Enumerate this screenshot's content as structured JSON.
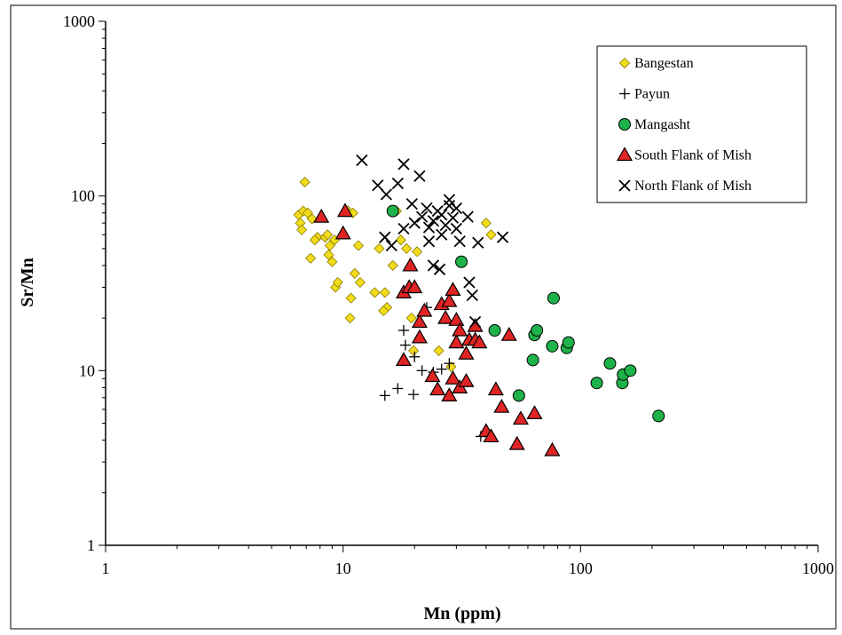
{
  "chart_data": {
    "type": "scatter",
    "title": "",
    "xlabel": "Mn (ppm)",
    "ylabel": "Sr/Mn",
    "xscale": "log",
    "yscale": "log",
    "xlim": [
      1,
      1000
    ],
    "ylim": [
      1,
      1000
    ],
    "xticks": [
      1,
      10,
      100,
      1000
    ],
    "yticks": [
      1,
      10,
      100,
      1000
    ],
    "xtick_labels": [
      "1",
      "10",
      "100",
      "1000"
    ],
    "ytick_labels": [
      "1",
      "10",
      "100",
      "1000"
    ],
    "grid": false,
    "legend_position": "top-right",
    "series": [
      {
        "name": "Bangestan",
        "marker": "diamond",
        "color": "#f2dc1c",
        "points": [
          [
            6.9,
            120
          ],
          [
            6.5,
            78
          ],
          [
            6.8,
            82
          ],
          [
            7.1,
            80
          ],
          [
            6.6,
            70
          ],
          [
            6.7,
            64
          ],
          [
            7.4,
            74
          ],
          [
            7.8,
            58
          ],
          [
            7.6,
            56
          ],
          [
            7.3,
            44
          ],
          [
            8.4,
            58
          ],
          [
            8.6,
            60
          ],
          [
            8.8,
            52
          ],
          [
            8.7,
            46
          ],
          [
            9.0,
            42
          ],
          [
            9.2,
            56
          ],
          [
            9.3,
            30
          ],
          [
            9.5,
            32
          ],
          [
            10.5,
            82
          ],
          [
            11.0,
            80
          ],
          [
            10.8,
            26
          ],
          [
            11.6,
            52
          ],
          [
            11.2,
            36
          ],
          [
            10.7,
            20
          ],
          [
            11.8,
            32
          ],
          [
            13.6,
            28
          ],
          [
            14.2,
            50
          ],
          [
            15.0,
            28
          ],
          [
            15.3,
            23
          ],
          [
            14.8,
            22
          ],
          [
            16.2,
            40
          ],
          [
            16.8,
            82
          ],
          [
            17.5,
            56
          ],
          [
            18.5,
            50
          ],
          [
            20.5,
            48
          ],
          [
            19.4,
            20
          ],
          [
            19.8,
            13
          ],
          [
            25.3,
            13
          ],
          [
            28.5,
            10.5
          ],
          [
            40.0,
            70
          ],
          [
            42.0,
            60
          ]
        ]
      },
      {
        "name": "Payun",
        "marker": "plus",
        "color": "#000000",
        "points": [
          [
            15.0,
            7.2
          ],
          [
            17.0,
            7.9
          ],
          [
            19.8,
            7.3
          ],
          [
            18.0,
            17
          ],
          [
            18.3,
            14
          ],
          [
            20.0,
            12
          ],
          [
            21.5,
            10
          ],
          [
            22.5,
            23
          ],
          [
            24.0,
            9.8
          ],
          [
            26.0,
            10.2
          ],
          [
            28.0,
            11
          ],
          [
            38.0,
            4.2
          ]
        ]
      },
      {
        "name": "Mangasht",
        "marker": "circle",
        "color": "#1eb24a",
        "points": [
          [
            16.2,
            82
          ],
          [
            31.5,
            42
          ],
          [
            43.5,
            17
          ],
          [
            55.0,
            7.2
          ],
          [
            63.0,
            11.5
          ],
          [
            64.0,
            16
          ],
          [
            65.5,
            17
          ],
          [
            76.0,
            13.8
          ],
          [
            77.0,
            26
          ],
          [
            87.5,
            13.5
          ],
          [
            89.0,
            14.5
          ],
          [
            117.0,
            8.5
          ],
          [
            133.0,
            11
          ],
          [
            150.0,
            8.5
          ],
          [
            151.0,
            9.5
          ],
          [
            162.0,
            10
          ],
          [
            213.0,
            5.5
          ]
        ]
      },
      {
        "name": "South Flank of Mish",
        "marker": "triangle",
        "color": "#e02424",
        "points": [
          [
            8.1,
            76
          ],
          [
            10.2,
            82
          ],
          [
            10.0,
            61
          ],
          [
            18.0,
            28
          ],
          [
            18.0,
            11.5
          ],
          [
            19.0,
            30
          ],
          [
            19.2,
            40
          ],
          [
            20.0,
            30
          ],
          [
            21.0,
            15.5
          ],
          [
            21.0,
            19
          ],
          [
            22.0,
            22
          ],
          [
            23.8,
            9.3
          ],
          [
            25.0,
            7.8
          ],
          [
            26.0,
            24
          ],
          [
            27.0,
            20
          ],
          [
            28.0,
            25
          ],
          [
            28.0,
            7.2
          ],
          [
            29.0,
            29
          ],
          [
            29.0,
            9.0
          ],
          [
            30.0,
            14.5
          ],
          [
            30.0,
            19.5
          ],
          [
            31.0,
            17
          ],
          [
            31.0,
            8.0
          ],
          [
            33.0,
            8.7
          ],
          [
            33.0,
            12.5
          ],
          [
            34.0,
            15.0
          ],
          [
            36.0,
            15.0
          ],
          [
            36.0,
            18.0
          ],
          [
            37.5,
            14.5
          ],
          [
            40.0,
            4.5
          ],
          [
            42.0,
            4.2
          ],
          [
            44.0,
            7.8
          ],
          [
            46.5,
            6.2
          ],
          [
            50.0,
            16
          ],
          [
            54.0,
            3.8
          ],
          [
            56.0,
            5.3
          ],
          [
            64.0,
            5.7
          ],
          [
            76.0,
            3.5
          ]
        ]
      },
      {
        "name": "North Flank of Mish",
        "marker": "x",
        "color": "#000000",
        "points": [
          [
            12.0,
            160
          ],
          [
            14.0,
            115
          ],
          [
            15.2,
            102
          ],
          [
            17.0,
            118
          ],
          [
            18.0,
            152
          ],
          [
            19.5,
            90
          ],
          [
            21.0,
            130
          ],
          [
            22.5,
            85
          ],
          [
            21.5,
            76
          ],
          [
            23.0,
            66
          ],
          [
            24.0,
            72
          ],
          [
            25.0,
            82
          ],
          [
            26.0,
            78
          ],
          [
            27.0,
            68
          ],
          [
            28.0,
            95
          ],
          [
            29.0,
            75
          ],
          [
            30.0,
            65
          ],
          [
            26.0,
            60
          ],
          [
            24.0,
            40
          ],
          [
            25.5,
            38
          ],
          [
            31.0,
            55
          ],
          [
            33.5,
            76
          ],
          [
            34.0,
            32
          ],
          [
            35.0,
            27
          ],
          [
            37.0,
            54
          ],
          [
            36.0,
            19
          ],
          [
            47.0,
            58
          ],
          [
            15.0,
            58
          ],
          [
            16.0,
            52
          ],
          [
            18.0,
            65
          ],
          [
            20.0,
            70
          ],
          [
            23.0,
            55
          ],
          [
            28.0,
            88
          ],
          [
            30.0,
            85
          ]
        ]
      }
    ]
  }
}
